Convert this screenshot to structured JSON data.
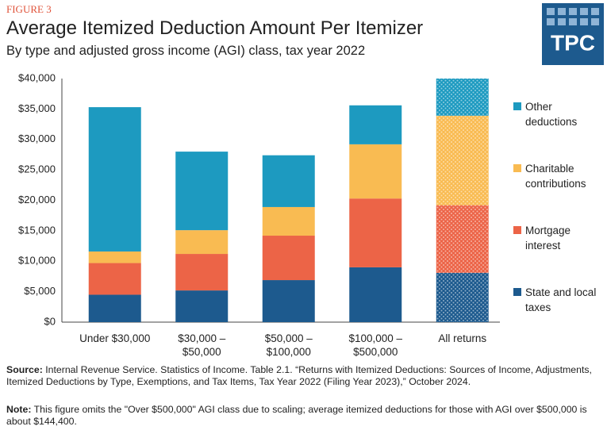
{
  "chart_data": {
    "type": "stacked_bar",
    "figure_label": "FIGURE 3",
    "title": "Average Itemized Deduction Amount Per Itemizer",
    "subtitle": "By type and adjusted gross income (AGI) class, tax year 2022",
    "logo": "TPC",
    "categories": [
      "Under $30,000",
      "$30,000 – $50,000",
      "$50,000 – $100,000",
      "$100,000 – $500,000",
      "All returns"
    ],
    "series": [
      {
        "name": "State and local taxes",
        "color": "#1d5a8e",
        "values": [
          4500,
          5200,
          6900,
          9000,
          8100
        ]
      },
      {
        "name": "Mortgage interest",
        "color": "#ec6447",
        "values": [
          5200,
          6000,
          7300,
          11300,
          11100
        ]
      },
      {
        "name": "Charitable contributions",
        "color": "#f9bb52",
        "values": [
          1900,
          3900,
          4700,
          8900,
          14700
        ]
      },
      {
        "name": "Other deductions",
        "color": "#1d9ac0",
        "values": [
          23700,
          12900,
          8500,
          6400,
          6100
        ]
      }
    ],
    "patterned_index": 4,
    "ylim": [
      0,
      40000
    ],
    "yticks": [
      {
        "value": 0,
        "label": "$0"
      },
      {
        "value": 5000,
        "label": "$5,000"
      },
      {
        "value": 10000,
        "label": "$10,000"
      },
      {
        "value": 15000,
        "label": "$15,000"
      },
      {
        "value": 20000,
        "label": "$20,000"
      },
      {
        "value": 25000,
        "label": "$25,000"
      },
      {
        "value": 30000,
        "label": "$30,000"
      },
      {
        "value": 35000,
        "label": "$35,000"
      },
      {
        "value": 40000,
        "label": "$40,000"
      }
    ],
    "source_label": "Source:",
    "source_text": "Internal Revenue Service. Statistics of Income. Table 2.1. “Returns with Itemized Deductions: Sources of Income, Adjustments, Itemized Deductions by Type, Exemptions, and Tax Items, Tax Year 2022 (Filing Year 2023),” October 2024.",
    "note_label": "Note:",
    "note_text": "This figure omits the \"Over $500,000\" AGI class due to scaling; average itemized deductions for those with AGI over $500,000 is about $144,400."
  }
}
